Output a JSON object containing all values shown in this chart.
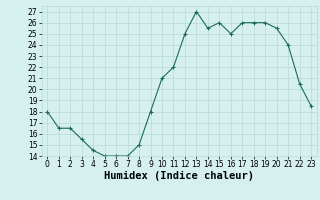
{
  "x": [
    0,
    1,
    2,
    3,
    4,
    5,
    6,
    7,
    8,
    9,
    10,
    11,
    12,
    13,
    14,
    15,
    16,
    17,
    18,
    19,
    20,
    21,
    22,
    23
  ],
  "y": [
    18,
    16.5,
    16.5,
    15.5,
    14.5,
    14,
    14,
    14,
    15,
    18,
    21,
    22,
    25,
    27,
    25.5,
    26,
    25,
    26,
    26,
    26,
    25.5,
    24,
    20.5,
    18.5
  ],
  "line_color": "#1a6b5a",
  "marker": "+",
  "marker_size": 3,
  "background_color": "#d6f0f0",
  "grid_color": "#b8d8d8",
  "xlabel": "Humidex (Indice chaleur)",
  "ylim": [
    14,
    27.5
  ],
  "xlim": [
    -0.5,
    23.5
  ],
  "yticks": [
    14,
    15,
    16,
    17,
    18,
    19,
    20,
    21,
    22,
    23,
    24,
    25,
    26,
    27
  ],
  "xticks": [
    0,
    1,
    2,
    3,
    4,
    5,
    6,
    7,
    8,
    9,
    10,
    11,
    12,
    13,
    14,
    15,
    16,
    17,
    18,
    19,
    20,
    21,
    22,
    23
  ],
  "tick_fontsize": 5.5,
  "label_fontsize": 7.5
}
